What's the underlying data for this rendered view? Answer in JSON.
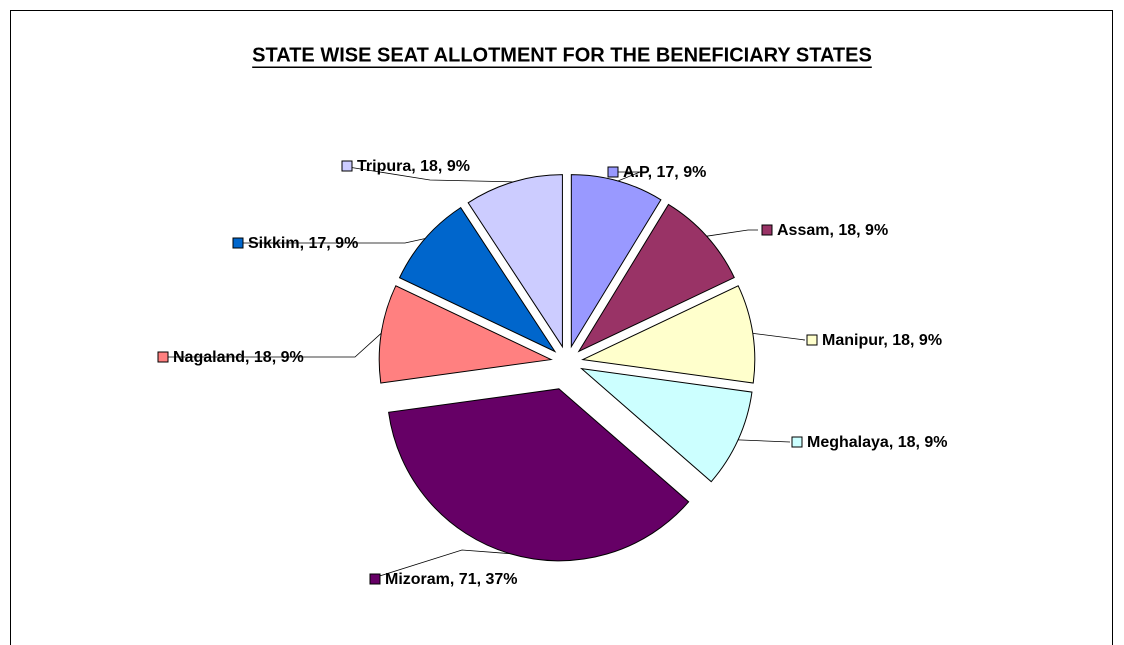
{
  "chart_data": {
    "type": "pie",
    "title": "STATE WISE SEAT ALLOTMENT FOR THE BENEFICIARY STATES",
    "categories": [
      "A.P",
      "Assam",
      "Manipur",
      "Meghalaya",
      "Mizoram",
      "Nagaland",
      "Sikkim",
      "Tripura"
    ],
    "values": [
      17,
      18,
      18,
      18,
      71,
      18,
      17,
      18
    ],
    "value_labels": [
      "A.P, 17, 9%",
      "Assam, 18, 9%",
      "Manipur, 18, 9%",
      "Meghalaya, 18, 9%",
      "Mizoram, 71, 37%",
      "Nagaland, 18, 9%",
      "Sikkim, 17, 9%",
      "Tripura, 18, 9%"
    ],
    "colors": [
      "#9999ff",
      "#993366",
      "#ffffcc",
      "#ccffff",
      "#660066",
      "#ff8080",
      "#0066cc",
      "#ccccff"
    ]
  }
}
